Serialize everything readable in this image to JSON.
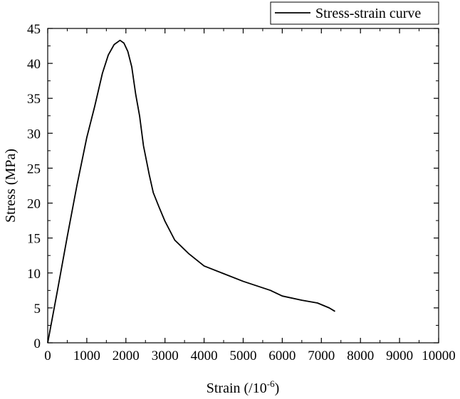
{
  "chart_data": {
    "type": "line",
    "title": "",
    "xlabel": "Strain (/10",
    "xlabel_superscript": "-6",
    "xlabel_suffix": ")",
    "ylabel": "Stress (MPa)",
    "xlim": [
      0,
      10000
    ],
    "ylim": [
      0,
      45
    ],
    "x_ticks": [
      0,
      1000,
      2000,
      3000,
      4000,
      5000,
      6000,
      7000,
      8000,
      9000,
      10000
    ],
    "y_ticks": [
      0,
      5,
      10,
      15,
      20,
      25,
      30,
      35,
      40,
      45
    ],
    "grid": false,
    "legend_position": "top-right",
    "series": [
      {
        "name": "Stress-strain curve",
        "color": "#000000",
        "points": [
          [
            0,
            0
          ],
          [
            250,
            7.5
          ],
          [
            500,
            15.2
          ],
          [
            750,
            22.6
          ],
          [
            1000,
            29.4
          ],
          [
            1200,
            33.8
          ],
          [
            1400,
            38.6
          ],
          [
            1550,
            41.2
          ],
          [
            1700,
            42.7
          ],
          [
            1850,
            43.3
          ],
          [
            1950,
            42.9
          ],
          [
            2050,
            41.7
          ],
          [
            2150,
            39.5
          ],
          [
            2250,
            35.6
          ],
          [
            2350,
            32.5
          ],
          [
            2450,
            28.2
          ],
          [
            2600,
            24.0
          ],
          [
            2700,
            21.5
          ],
          [
            2850,
            19.4
          ],
          [
            3000,
            17.4
          ],
          [
            3250,
            14.7
          ],
          [
            3600,
            12.8
          ],
          [
            4000,
            11.0
          ],
          [
            4500,
            9.9
          ],
          [
            5000,
            8.8
          ],
          [
            5700,
            7.5
          ],
          [
            6000,
            6.7
          ],
          [
            6500,
            6.1
          ],
          [
            6900,
            5.7
          ],
          [
            7200,
            5.0
          ],
          [
            7350,
            4.5
          ]
        ]
      }
    ]
  }
}
